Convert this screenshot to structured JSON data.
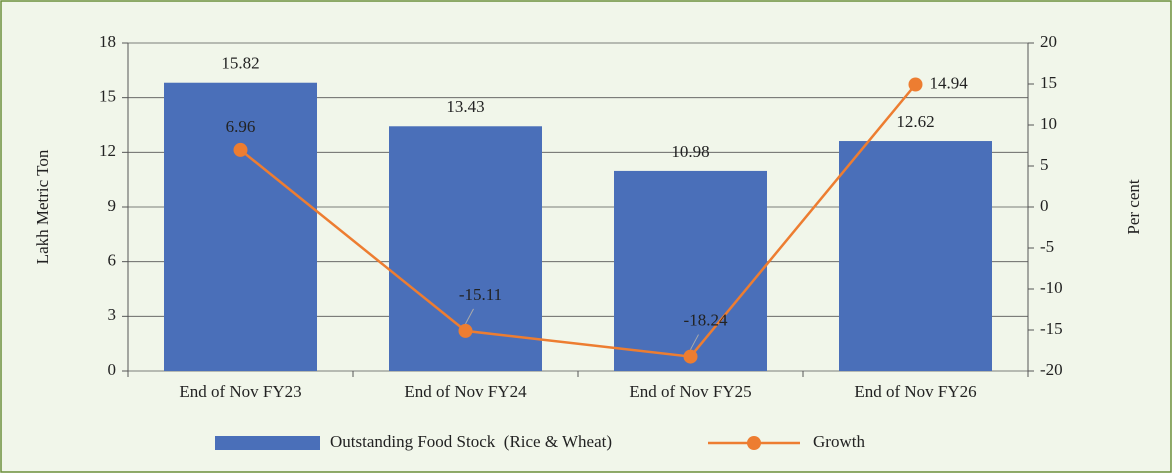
{
  "chart_data": {
    "type": "bar",
    "categories": [
      "End of Nov FY23",
      "End of Nov FY24",
      "End of Nov FY25",
      "End of Nov FY26"
    ],
    "series": [
      {
        "name": "Outstanding Food Stock  (Rice & Wheat)",
        "type": "bar",
        "color": "#4a6fb9",
        "values": [
          15.82,
          13.43,
          10.98,
          12.62
        ]
      },
      {
        "name": "Growth",
        "type": "line",
        "axis": "y2",
        "color": "#ed7d31",
        "values": [
          6.96,
          -15.11,
          -18.24,
          14.94
        ]
      }
    ],
    "ylabel": "Lakh Metric Ton",
    "y2label": "Per cent",
    "ylim": [
      0,
      18
    ],
    "yticks": [
      0,
      3,
      6,
      9,
      12,
      15,
      18
    ],
    "y2lim": [
      -20,
      20
    ],
    "y2ticks": [
      -20,
      -15,
      -10,
      -5,
      0,
      5,
      10,
      15,
      20
    ],
    "grid": true,
    "legend": "bottom"
  }
}
